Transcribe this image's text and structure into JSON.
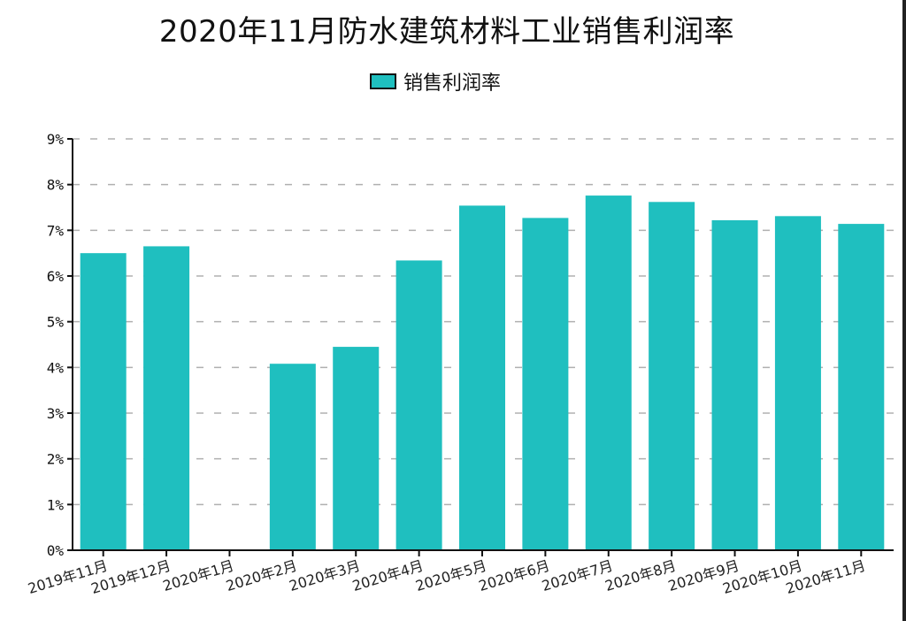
{
  "title": "2020年11月防水建筑材料工业销售利润率",
  "legend": {
    "label": "销售利润率",
    "color": "#1fbfbf"
  },
  "chart_data": {
    "type": "bar",
    "title": "2020年11月防水建筑材料工业销售利润率",
    "xlabel": "",
    "ylabel": "",
    "ylim": [
      0,
      9
    ],
    "yticks": [
      "0%",
      "1%",
      "2%",
      "3%",
      "4%",
      "5%",
      "6%",
      "7%",
      "8%",
      "9%"
    ],
    "grid": "horizontal dashed",
    "legend_position": "top-center",
    "categories": [
      "2019年11月",
      "2019年12月",
      "2020年1月",
      "2020年2月",
      "2020年3月",
      "2020年4月",
      "2020年5月",
      "2020年6月",
      "2020年7月",
      "2020年8月",
      "2020年9月",
      "2020年10月",
      "2020年11月"
    ],
    "series": [
      {
        "name": "销售利润率",
        "color": "#1fbfbf",
        "values": [
          6.5,
          6.65,
          null,
          4.08,
          4.45,
          6.34,
          7.54,
          7.27,
          7.76,
          7.62,
          7.22,
          7.31,
          7.14
        ]
      }
    ]
  }
}
